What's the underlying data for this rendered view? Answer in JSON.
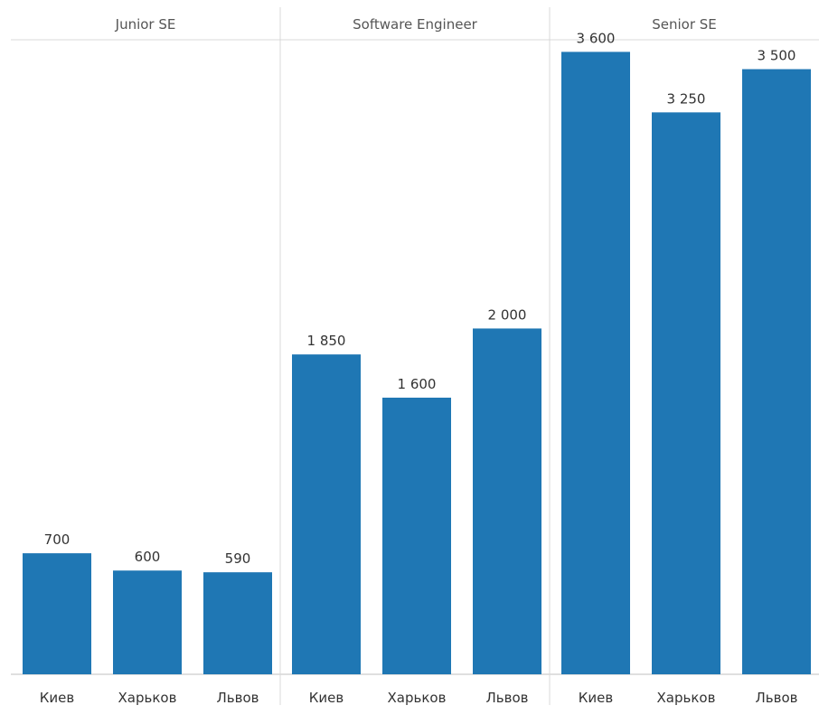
{
  "chart_data": {
    "type": "bar",
    "bar_color": "#1f77b4",
    "ylim": [
      0,
      3900
    ],
    "grid": false,
    "legend": "none",
    "groups": [
      {
        "title": "Junior SE",
        "bars": [
          {
            "category": "Киев",
            "value": 700,
            "label": "700"
          },
          {
            "category": "Харьков",
            "value": 600,
            "label": "600"
          },
          {
            "category": "Львов",
            "value": 590,
            "label": "590"
          }
        ]
      },
      {
        "title": "Software Engineer",
        "bars": [
          {
            "category": "Киев",
            "value": 1850,
            "label": "1 850"
          },
          {
            "category": "Харьков",
            "value": 1600,
            "label": "1 600"
          },
          {
            "category": "Львов",
            "value": 2000,
            "label": "2 000"
          }
        ]
      },
      {
        "title": "Senior SE",
        "bars": [
          {
            "category": "Киев",
            "value": 3600,
            "label": "3 600"
          },
          {
            "category": "Харьков",
            "value": 3250,
            "label": "3 250"
          },
          {
            "category": "Львов",
            "value": 3500,
            "label": "3 500"
          }
        ]
      }
    ]
  }
}
